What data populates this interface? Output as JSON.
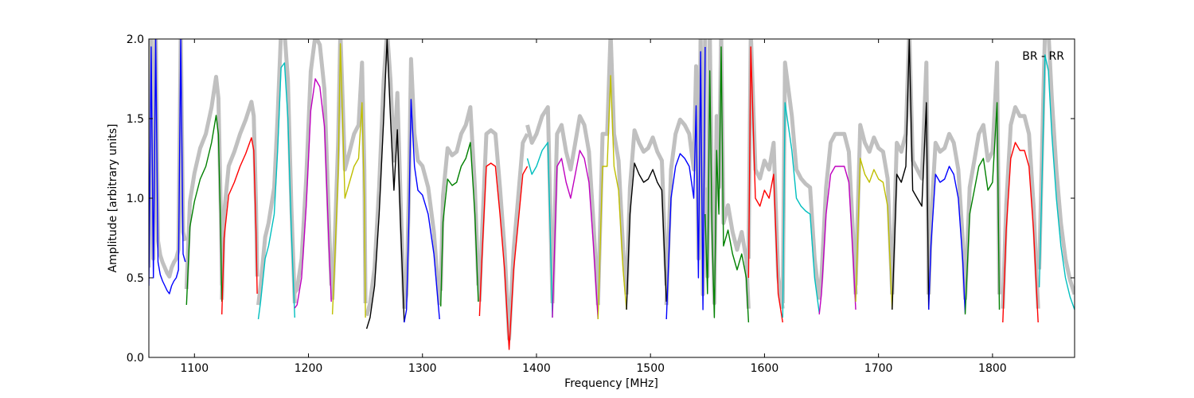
{
  "chart_data": {
    "type": "line",
    "title": "",
    "annotation": "BR - RR",
    "xlabel": "Frequency [MHz]",
    "ylabel": "Amplitude [arbitrary units]",
    "xlim": [
      1060,
      1872
    ],
    "ylim": [
      0,
      2.0
    ],
    "x_ticks": [
      1100,
      1200,
      1300,
      1400,
      1500,
      1600,
      1700,
      1800
    ],
    "y_ticks": [
      0.0,
      0.5,
      1.0,
      1.5,
      2.0
    ],
    "x_tick_labels": [
      "1100",
      "1200",
      "1300",
      "1400",
      "1500",
      "1600",
      "1700",
      "1800"
    ],
    "y_tick_labels": [
      "0.0",
      "0.5",
      "1.0",
      "1.5",
      "2.0"
    ],
    "grid": false,
    "legend": "none",
    "background_color": "#c0c0c0",
    "series": [
      {
        "color": "#0000ff",
        "x": [
          1060,
          1062,
          1064,
          1066,
          1068,
          1070,
          1072,
          1074,
          1076,
          1078,
          1080,
          1082,
          1084,
          1086,
          1088,
          1090,
          1092
        ],
        "y": [
          0.45,
          1.95,
          0.5,
          2.0,
          0.6,
          0.52,
          0.48,
          0.45,
          0.42,
          0.4,
          0.45,
          0.48,
          0.5,
          0.55,
          2.0,
          0.65,
          0.6
        ]
      },
      {
        "color": "#008000",
        "x": [
          1093,
          1096,
          1100,
          1105,
          1110,
          1115,
          1119,
          1121,
          1123,
          1124
        ],
        "y": [
          0.33,
          0.82,
          0.98,
          1.12,
          1.2,
          1.35,
          1.52,
          1.4,
          0.8,
          0.35
        ]
      },
      {
        "color": "#ff0000",
        "x": [
          1124,
          1126,
          1130,
          1135,
          1140,
          1145,
          1150,
          1152,
          1154,
          1155
        ],
        "y": [
          0.27,
          0.75,
          1.02,
          1.1,
          1.2,
          1.28,
          1.38,
          1.3,
          0.8,
          0.4
        ]
      },
      {
        "color": "#00bfbf",
        "x": [
          1156,
          1158,
          1162,
          1165,
          1170,
          1173,
          1176,
          1179,
          1182,
          1185,
          1188
        ],
        "y": [
          0.24,
          0.35,
          0.62,
          0.7,
          0.9,
          1.3,
          1.82,
          1.85,
          1.5,
          0.8,
          0.25
        ]
      },
      {
        "color": "#bf00bf",
        "x": [
          1188,
          1190,
          1194,
          1198,
          1202,
          1206,
          1210,
          1214,
          1218,
          1220
        ],
        "y": [
          0.31,
          0.33,
          0.5,
          0.95,
          1.55,
          1.75,
          1.7,
          1.45,
          0.7,
          0.35
        ]
      },
      {
        "color": "#bfbf00",
        "x": [
          1221,
          1223,
          1226,
          1228,
          1232,
          1236,
          1240,
          1244,
          1247,
          1249,
          1250
        ],
        "y": [
          0.27,
          0.6,
          1.15,
          1.97,
          1.0,
          1.1,
          1.2,
          1.25,
          1.6,
          1.0,
          0.25
        ]
      },
      {
        "color": "#000000",
        "x": [
          1251,
          1254,
          1258,
          1262,
          1266,
          1269,
          1272,
          1275,
          1278,
          1281,
          1284
        ],
        "y": [
          0.18,
          0.25,
          0.45,
          0.9,
          1.5,
          2.0,
          1.5,
          1.05,
          1.43,
          0.8,
          0.22
        ]
      },
      {
        "color": "#0000ff",
        "x": [
          1284,
          1286,
          1288,
          1290,
          1293,
          1296,
          1300,
          1305,
          1310,
          1313,
          1315
        ],
        "y": [
          0.22,
          0.3,
          0.85,
          1.62,
          1.2,
          1.05,
          1.02,
          0.9,
          0.65,
          0.4,
          0.24
        ]
      },
      {
        "color": "#008000",
        "x": [
          1316,
          1318,
          1322,
          1326,
          1330,
          1334,
          1338,
          1342,
          1346,
          1349
        ],
        "y": [
          0.32,
          0.85,
          1.12,
          1.08,
          1.1,
          1.2,
          1.25,
          1.35,
          0.9,
          0.35
        ]
      },
      {
        "color": "#ff0000",
        "x": [
          1350,
          1352,
          1356,
          1360,
          1364,
          1368,
          1372,
          1376,
          1380,
          1384,
          1388,
          1392
        ],
        "y": [
          0.26,
          0.6,
          1.2,
          1.22,
          1.2,
          0.9,
          0.55,
          0.05,
          0.55,
          0.85,
          1.15,
          1.2
        ]
      },
      {
        "color": "#00bfbf",
        "x": [
          1392,
          1396,
          1400,
          1405,
          1410,
          1412,
          1414
        ],
        "y": [
          1.25,
          1.15,
          1.2,
          1.3,
          1.35,
          0.8,
          0.25
        ]
      },
      {
        "color": "#bf00bf",
        "x": [
          1414,
          1418,
          1422,
          1426,
          1430,
          1434,
          1438,
          1442,
          1446,
          1450,
          1454
        ],
        "y": [
          0.25,
          1.2,
          1.25,
          1.1,
          1.0,
          1.15,
          1.3,
          1.25,
          1.1,
          0.7,
          0.24
        ]
      },
      {
        "color": "#bfbf00",
        "x": [
          1454,
          1458,
          1462,
          1465,
          1468,
          1472,
          1476,
          1479
        ],
        "y": [
          0.24,
          1.2,
          1.2,
          1.77,
          1.2,
          1.05,
          0.55,
          0.3
        ]
      },
      {
        "color": "#000000",
        "x": [
          1479,
          1482,
          1486,
          1490,
          1494,
          1498,
          1502,
          1506,
          1510,
          1514
        ],
        "y": [
          0.3,
          0.9,
          1.22,
          1.15,
          1.1,
          1.12,
          1.18,
          1.1,
          1.05,
          0.35
        ]
      },
      {
        "color": "#0000ff",
        "x": [
          1514,
          1518,
          1522,
          1526,
          1530,
          1534,
          1538,
          1540,
          1542,
          1544,
          1546,
          1548
        ],
        "y": [
          0.24,
          1.0,
          1.2,
          1.28,
          1.25,
          1.2,
          1.0,
          1.58,
          0.5,
          1.92,
          0.3,
          1.95
        ]
      },
      {
        "color": "#008000",
        "x": [
          1548,
          1550,
          1552,
          1554,
          1556,
          1558,
          1560,
          1562,
          1564,
          1568,
          1572,
          1576,
          1580,
          1584,
          1586
        ],
        "y": [
          0.9,
          0.4,
          1.8,
          0.8,
          0.25,
          1.3,
          0.9,
          1.95,
          0.7,
          0.8,
          0.65,
          0.55,
          0.65,
          0.5,
          0.22
        ]
      },
      {
        "color": "#ff0000",
        "x": [
          1586,
          1588,
          1592,
          1596,
          1600,
          1604,
          1608,
          1612,
          1616
        ],
        "y": [
          0.5,
          1.95,
          1.0,
          0.95,
          1.05,
          1.0,
          1.15,
          0.4,
          0.22
        ]
      },
      {
        "color": "#00bfbf",
        "x": [
          1616,
          1618,
          1621,
          1624,
          1628,
          1632,
          1636,
          1640,
          1644,
          1648
        ],
        "y": [
          0.25,
          1.6,
          1.45,
          1.3,
          1.0,
          0.95,
          0.92,
          0.9,
          0.5,
          0.28
        ]
      },
      {
        "color": "#bf00bf",
        "x": [
          1648,
          1650,
          1654,
          1658,
          1662,
          1666,
          1670,
          1674,
          1678,
          1680
        ],
        "y": [
          0.27,
          0.4,
          0.9,
          1.15,
          1.2,
          1.2,
          1.2,
          1.1,
          0.6,
          0.3
        ]
      },
      {
        "color": "#bfbf00",
        "x": [
          1680,
          1684,
          1688,
          1692,
          1696,
          1700,
          1704,
          1708,
          1712
        ],
        "y": [
          0.35,
          1.25,
          1.15,
          1.1,
          1.18,
          1.12,
          1.1,
          0.95,
          0.3
        ]
      },
      {
        "color": "#000000",
        "x": [
          1712,
          1716,
          1720,
          1724,
          1727,
          1730,
          1734,
          1738,
          1742,
          1744
        ],
        "y": [
          0.3,
          1.15,
          1.1,
          1.2,
          2.0,
          1.05,
          1.0,
          0.95,
          1.6,
          0.3
        ]
      },
      {
        "color": "#0000ff",
        "x": [
          1744,
          1746,
          1750,
          1754,
          1758,
          1762,
          1766,
          1770,
          1774,
          1776
        ],
        "y": [
          0.3,
          0.7,
          1.15,
          1.1,
          1.12,
          1.2,
          1.15,
          1.0,
          0.6,
          0.28
        ]
      },
      {
        "color": "#008000",
        "x": [
          1776,
          1780,
          1784,
          1788,
          1792,
          1796,
          1800,
          1804,
          1806
        ],
        "y": [
          0.27,
          0.9,
          1.05,
          1.2,
          1.25,
          1.05,
          1.1,
          1.6,
          0.3
        ]
      },
      {
        "color": "#ff0000",
        "x": [
          1809,
          1812,
          1816,
          1820,
          1824,
          1828,
          1832,
          1836,
          1840
        ],
        "y": [
          0.22,
          0.8,
          1.25,
          1.35,
          1.3,
          1.3,
          1.2,
          0.8,
          0.22
        ]
      },
      {
        "color": "#00bfbf",
        "x": [
          1841,
          1843,
          1846,
          1849,
          1852,
          1856,
          1860,
          1864,
          1868,
          1872
        ],
        "y": [
          0.44,
          1.0,
          1.9,
          1.8,
          1.4,
          1.0,
          0.7,
          0.5,
          0.38,
          0.3
        ]
      }
    ]
  }
}
